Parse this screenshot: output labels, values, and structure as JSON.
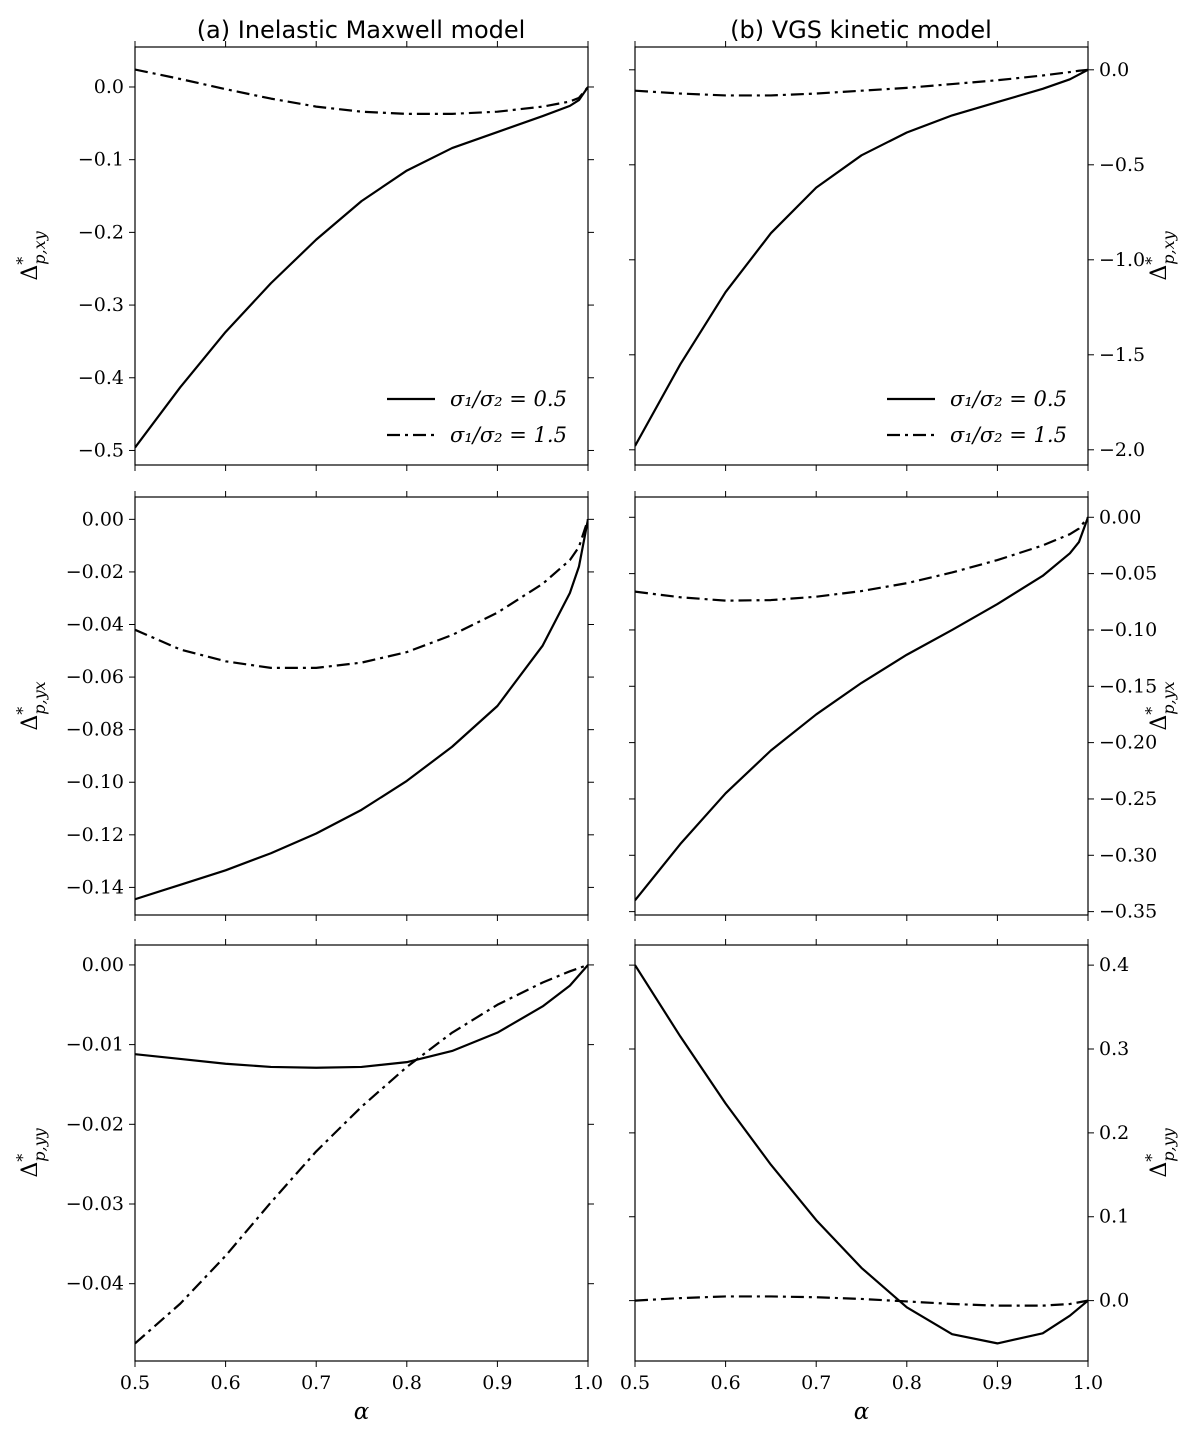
{
  "figure": {
    "column_titles": [
      "(a) Inelastic Maxwell model",
      "(b) VGS kinetic model"
    ]
  },
  "legend": {
    "entries": [
      {
        "label": "σ₁/σ₂ = 0.5",
        "style": "solid"
      },
      {
        "label": "σ₁/σ₂ = 1.5",
        "style": "dashdot"
      }
    ]
  },
  "chart_data": [
    {
      "type": "line",
      "title": "(a) Inelastic Maxwell model",
      "xlabel": "",
      "ylabel": "Δ*p,xy",
      "xlim": [
        0.5,
        1.0
      ],
      "ylim": [
        -0.52,
        0.055
      ],
      "xticks": [
        "0.5",
        "0.6",
        "0.7",
        "0.8",
        "0.9",
        "1.0"
      ],
      "yticks": [
        "0.0",
        "−0.1",
        "−0.2",
        "−0.3",
        "−0.4",
        "−0.5"
      ],
      "yaxis_side": "left",
      "legend": "lower-right",
      "series": [
        {
          "name": "σ₁/σ₂ = 0.5",
          "style": "solid",
          "x": [
            0.5,
            0.55,
            0.6,
            0.65,
            0.7,
            0.75,
            0.8,
            0.85,
            0.9,
            0.95,
            0.98,
            0.99,
            1.0
          ],
          "y": [
            -0.496,
            -0.413,
            -0.337,
            -0.27,
            -0.21,
            -0.157,
            -0.115,
            -0.084,
            -0.062,
            -0.04,
            -0.026,
            -0.018,
            0.0
          ]
        },
        {
          "name": "σ₁/σ₂ = 1.5",
          "style": "dashdot",
          "x": [
            0.5,
            0.55,
            0.6,
            0.65,
            0.7,
            0.75,
            0.8,
            0.85,
            0.9,
            0.95,
            0.98,
            0.99,
            1.0
          ],
          "y": [
            0.024,
            0.011,
            -0.003,
            -0.016,
            -0.027,
            -0.034,
            -0.037,
            -0.037,
            -0.034,
            -0.027,
            -0.02,
            -0.015,
            0.0
          ]
        }
      ]
    },
    {
      "type": "line",
      "title": "(b) VGS kinetic model",
      "xlabel": "",
      "ylabel": "Δ*p,xy",
      "xlim": [
        0.5,
        1.0
      ],
      "ylim": [
        -2.08,
        0.12
      ],
      "xticks": [
        "0.5",
        "0.6",
        "0.7",
        "0.8",
        "0.9",
        "1.0"
      ],
      "yticks": [
        "0.0",
        "−0.5",
        "−1.0",
        "−1.5",
        "−2.0"
      ],
      "yaxis_side": "right",
      "legend": "lower-right",
      "series": [
        {
          "name": "σ₁/σ₂ = 0.5",
          "style": "solid",
          "x": [
            0.5,
            0.55,
            0.6,
            0.65,
            0.7,
            0.75,
            0.8,
            0.85,
            0.9,
            0.95,
            0.98,
            0.99,
            1.0
          ],
          "y": [
            -1.98,
            -1.55,
            -1.17,
            -0.86,
            -0.62,
            -0.45,
            -0.33,
            -0.24,
            -0.17,
            -0.1,
            -0.05,
            -0.025,
            0.0
          ]
        },
        {
          "name": "σ₁/σ₂ = 1.5",
          "style": "dashdot",
          "x": [
            0.5,
            0.55,
            0.6,
            0.65,
            0.7,
            0.75,
            0.8,
            0.85,
            0.9,
            0.95,
            0.98,
            0.99,
            1.0
          ],
          "y": [
            -0.11,
            -0.125,
            -0.135,
            -0.135,
            -0.125,
            -0.11,
            -0.095,
            -0.075,
            -0.055,
            -0.03,
            -0.012,
            -0.005,
            0.0
          ]
        }
      ]
    },
    {
      "type": "line",
      "title": "",
      "xlabel": "",
      "ylabel": "Δ*p,yx",
      "xlim": [
        0.5,
        1.0
      ],
      "ylim": [
        -0.1505,
        0.0085
      ],
      "xticks": [
        "0.5",
        "0.6",
        "0.7",
        "0.8",
        "0.9",
        "1.0"
      ],
      "yticks": [
        "0.00",
        "−0.02",
        "−0.04",
        "−0.06",
        "−0.08",
        "−0.10",
        "−0.12",
        "−0.14"
      ],
      "yaxis_side": "left",
      "series": [
        {
          "name": "σ₁/σ₂ = 0.5",
          "style": "solid",
          "x": [
            0.5,
            0.55,
            0.6,
            0.65,
            0.7,
            0.75,
            0.8,
            0.85,
            0.9,
            0.95,
            0.98,
            0.99,
            1.0
          ],
          "y": [
            -0.1445,
            -0.139,
            -0.1335,
            -0.127,
            -0.1195,
            -0.1105,
            -0.0995,
            -0.0865,
            -0.071,
            -0.048,
            -0.028,
            -0.018,
            0.0
          ]
        },
        {
          "name": "σ₁/σ₂ = 1.5",
          "style": "dashdot",
          "x": [
            0.5,
            0.55,
            0.6,
            0.65,
            0.7,
            0.75,
            0.8,
            0.85,
            0.9,
            0.95,
            0.98,
            0.99,
            1.0
          ],
          "y": [
            -0.042,
            -0.0495,
            -0.054,
            -0.0565,
            -0.0565,
            -0.0545,
            -0.0505,
            -0.044,
            -0.0355,
            -0.0245,
            -0.0155,
            -0.0105,
            0.0
          ]
        }
      ]
    },
    {
      "type": "line",
      "title": "",
      "xlabel": "",
      "ylabel": "Δ*p,yx",
      "xlim": [
        0.5,
        1.0
      ],
      "ylim": [
        -0.353,
        0.018
      ],
      "xticks": [
        "0.5",
        "0.6",
        "0.7",
        "0.8",
        "0.9",
        "1.0"
      ],
      "yticks": [
        "0.00",
        "−0.05",
        "−0.10",
        "−0.15",
        "−0.20",
        "−0.25",
        "−0.30",
        "−0.35"
      ],
      "yaxis_side": "right",
      "series": [
        {
          "name": "σ₁/σ₂ = 0.5",
          "style": "solid",
          "x": [
            0.5,
            0.55,
            0.6,
            0.65,
            0.7,
            0.75,
            0.8,
            0.85,
            0.9,
            0.95,
            0.98,
            0.99,
            1.0
          ],
          "y": [
            -0.34,
            -0.29,
            -0.245,
            -0.207,
            -0.175,
            -0.147,
            -0.122,
            -0.1,
            -0.077,
            -0.052,
            -0.032,
            -0.022,
            0.0
          ]
        },
        {
          "name": "σ₁/σ₂ = 1.5",
          "style": "dashdot",
          "x": [
            0.5,
            0.55,
            0.6,
            0.65,
            0.7,
            0.75,
            0.8,
            0.85,
            0.9,
            0.95,
            0.98,
            0.99,
            1.0
          ],
          "y": [
            -0.066,
            -0.071,
            -0.074,
            -0.0735,
            -0.0705,
            -0.0655,
            -0.0585,
            -0.049,
            -0.038,
            -0.025,
            -0.015,
            -0.01,
            0.0
          ]
        }
      ]
    },
    {
      "type": "line",
      "title": "",
      "xlabel": "α",
      "ylabel": "Δ*p,yy",
      "xlim": [
        0.5,
        1.0
      ],
      "ylim": [
        -0.0497,
        0.0025
      ],
      "xticks": [
        "0.5",
        "0.6",
        "0.7",
        "0.8",
        "0.9",
        "1.0"
      ],
      "yticks": [
        "0.00",
        "−0.01",
        "−0.02",
        "−0.03",
        "−0.04"
      ],
      "yaxis_side": "left",
      "series": [
        {
          "name": "σ₁/σ₂ = 0.5",
          "style": "solid",
          "x": [
            0.5,
            0.55,
            0.6,
            0.65,
            0.7,
            0.75,
            0.8,
            0.85,
            0.9,
            0.95,
            0.98,
            1.0
          ],
          "y": [
            -0.0112,
            -0.0118,
            -0.0124,
            -0.0128,
            -0.0129,
            -0.0128,
            -0.0122,
            -0.0108,
            -0.0085,
            -0.0052,
            -0.0026,
            0.0
          ]
        },
        {
          "name": "σ₁/σ₂ = 1.5",
          "style": "dashdot",
          "x": [
            0.5,
            0.55,
            0.6,
            0.65,
            0.7,
            0.75,
            0.8,
            0.85,
            0.9,
            0.95,
            0.98,
            1.0
          ],
          "y": [
            -0.0475,
            -0.0425,
            -0.0365,
            -0.0298,
            -0.0234,
            -0.0178,
            -0.0128,
            -0.0085,
            -0.005,
            -0.0022,
            -0.0008,
            0.0
          ]
        }
      ]
    },
    {
      "type": "line",
      "title": "",
      "xlabel": "α",
      "ylabel": "Δ*p,yy",
      "xlim": [
        0.5,
        1.0
      ],
      "ylim": [
        -0.072,
        0.424
      ],
      "xticks": [
        "0.5",
        "0.6",
        "0.7",
        "0.8",
        "0.9",
        "1.0"
      ],
      "yticks": [
        "0.4",
        "0.3",
        "0.2",
        "0.1",
        "0.0"
      ],
      "yaxis_side": "right",
      "series": [
        {
          "name": "σ₁/σ₂ = 0.5",
          "style": "solid",
          "x": [
            0.5,
            0.55,
            0.6,
            0.65,
            0.7,
            0.75,
            0.8,
            0.85,
            0.9,
            0.95,
            0.98,
            1.0
          ],
          "y": [
            0.4,
            0.315,
            0.235,
            0.162,
            0.096,
            0.039,
            -0.008,
            -0.04,
            -0.051,
            -0.039,
            -0.018,
            0.0
          ]
        },
        {
          "name": "σ₁/σ₂ = 1.5",
          "style": "dashdot",
          "x": [
            0.5,
            0.55,
            0.6,
            0.65,
            0.7,
            0.75,
            0.8,
            0.85,
            0.9,
            0.95,
            0.98,
            1.0
          ],
          "y": [
            0.0,
            0.003,
            0.005,
            0.005,
            0.004,
            0.002,
            -0.001,
            -0.004,
            -0.006,
            -0.006,
            -0.004,
            0.0
          ]
        }
      ]
    }
  ]
}
